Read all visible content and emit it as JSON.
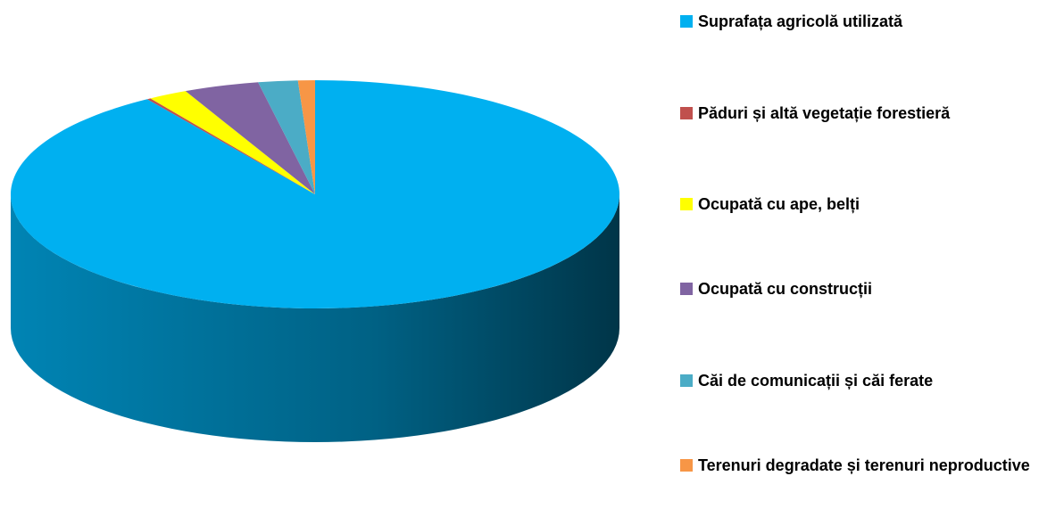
{
  "chart_data": {
    "type": "pie3d",
    "categories": [
      "Suprafața agricolă utilizată",
      "Păduri și altă vegetație forestieră",
      "Ocupată cu ape, belți",
      "Ocupată cu construcții",
      "Căi de comunicații și căi ferate",
      "Terenuri degradate și terenuri neproductive"
    ],
    "values": [
      90.7,
      0.2,
      2.1,
      4.0,
      2.1,
      0.9
    ],
    "colors": [
      "#00b0f0",
      "#c0504d",
      "#ffff00",
      "#8064a2",
      "#4bacc6",
      "#f79646"
    ],
    "legend": "right"
  }
}
